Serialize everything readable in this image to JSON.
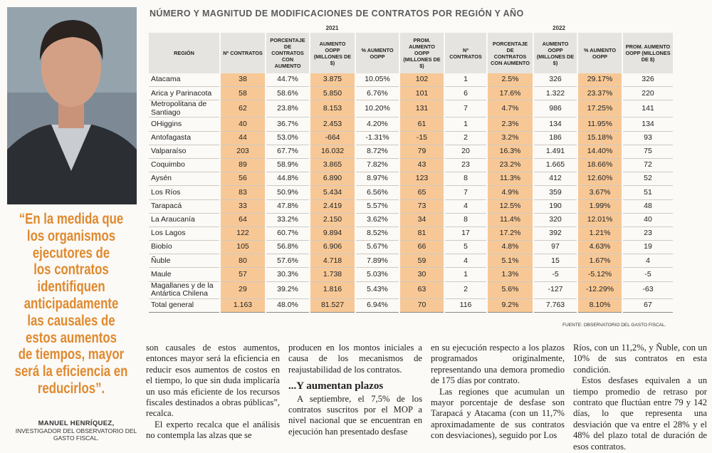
{
  "quote": {
    "lines": [
      "“En la medida que",
      "los organismos",
      "ejecutores de",
      "los contratos",
      "identifiquen",
      "anticipadamente",
      "las causales de",
      "estos aumentos",
      "de tiempos, mayor",
      "será la eficiencia en",
      "reducirlos”."
    ],
    "author": "MANUEL HENRÍQUEZ,",
    "role": "INVESTIGADOR DEL OBSERVATORIO DEL GASTO FISCAL."
  },
  "table": {
    "title": "NÚMERO Y MAGNITUD DE MODIFICACIONES DE CONTRATOS POR REGIÓN Y AÑO",
    "years": [
      "2021",
      "2022"
    ],
    "headers": [
      "REGIÓN",
      "Nº CONTRATOS",
      "PORCENTAJE DE CONTRATOS CON AUMENTO",
      "AUMENTO OOPP (MILLONES DE $)",
      "% AUMENTO OOPP",
      "PROM. AUMENTO OOPP (MILLONES DE $)",
      "Nº CONTRATOS",
      "PORCENTAJE DE CONTRATOS CON AUMENTO",
      "AUMENTO OOPP (MILLONES DE $)",
      "% AUMENTO OOPP",
      "PROM. AUMENTO OOPP (MILLONES DE $)"
    ],
    "rows": [
      [
        "Atacama",
        "38",
        "44.7%",
        "3.875",
        "10.05%",
        "102",
        "1",
        "2.5%",
        "326",
        "29.17%",
        "326"
      ],
      [
        "Arica y Parinacota",
        "58",
        "58.6%",
        "5.850",
        "6.76%",
        "101",
        "6",
        "17.6%",
        "1.322",
        "23.37%",
        "220"
      ],
      [
        "Metropolitana de Santiago",
        "62",
        "23.8%",
        "8.153",
        "10.20%",
        "131",
        "7",
        "4.7%",
        "986",
        "17.25%",
        "141"
      ],
      [
        "OHiggins",
        "40",
        "36.7%",
        "2.453",
        "4.20%",
        "61",
        "1",
        "2.3%",
        "134",
        "11.95%",
        "134"
      ],
      [
        "Antofagasta",
        "44",
        "53.0%",
        "-664",
        "-1.31%",
        "-15",
        "2",
        "3.2%",
        "186",
        "15.18%",
        "93"
      ],
      [
        "Valparaíso",
        "203",
        "67.7%",
        "16.032",
        "8.72%",
        "79",
        "20",
        "16.3%",
        "1.491",
        "14.40%",
        "75"
      ],
      [
        "Coquimbo",
        "89",
        "58.9%",
        "3.865",
        "7.82%",
        "43",
        "23",
        "23.2%",
        "1.665",
        "18.66%",
        "72"
      ],
      [
        "Aysén",
        "56",
        "44.8%",
        "6.890",
        "8.97%",
        "123",
        "8",
        "11.3%",
        "412",
        "12.60%",
        "52"
      ],
      [
        "Los Ríos",
        "83",
        "50.9%",
        "5.434",
        "6.56%",
        "65",
        "7",
        "4.9%",
        "359",
        "3.67%",
        "51"
      ],
      [
        "Tarapacá",
        "33",
        "47.8%",
        "2.419",
        "5.57%",
        "73",
        "4",
        "12.5%",
        "190",
        "1.99%",
        "48"
      ],
      [
        "La Araucanía",
        "64",
        "33.2%",
        "2.150",
        "3.62%",
        "34",
        "8",
        "11.4%",
        "320",
        "12.01%",
        "40"
      ],
      [
        "Los Lagos",
        "122",
        "60.7%",
        "9.894",
        "8.52%",
        "81",
        "17",
        "17.2%",
        "392",
        "1.21%",
        "23"
      ],
      [
        "Biobío",
        "105",
        "56.8%",
        "6.906",
        "5.67%",
        "66",
        "5",
        "4.8%",
        "97",
        "4.63%",
        "19"
      ],
      [
        "Ñuble",
        "80",
        "57.6%",
        "4.718",
        "7.89%",
        "59",
        "4",
        "5.1%",
        "15",
        "1.67%",
        "4"
      ],
      [
        "Maule",
        "57",
        "30.3%",
        "1.738",
        "5.03%",
        "30",
        "1",
        "1.3%",
        "-5",
        "-5.12%",
        "-5"
      ],
      [
        "Magallanes y de la Antártica Chilena",
        "29",
        "39.2%",
        "1.816",
        "5.43%",
        "63",
        "2",
        "5.6%",
        "-127",
        "-12.29%",
        "-63"
      ]
    ],
    "total": [
      "Total general",
      "1.163",
      "48.0%",
      "81.527",
      "6.94%",
      "70",
      "116",
      "9.2%",
      "7.763",
      "8.10%",
      "67"
    ],
    "source": "FUENTE: OBSERVATORIO DEL GASTO FISCAL."
  },
  "article": {
    "columns": [
      [
        "son causales de estos aumentos, entonces mayor será la eficiencia en reducir esos aumentos de costos en el tiempo, lo que sin duda implicaría un uso más eficiente de los recursos fiscales destinados a obras públicas”, recalca.",
        "El experto recalca que el análisis no contempla las alzas que se"
      ],
      [
        "producen en los montos iniciales a causa de los mecanismos de reajustabilidad de los contratos.",
        "A septiembre, el 7,5% de los contratos suscritos por el MOP a nivel nacional que se encuentran en ejecución han presentado desfase"
      ],
      [
        "en su ejecución respecto a los plazos programados originalmente, representando una demora promedio de 175 días por contrato.",
        "Las regiones que acumulan un mayor porcentaje de desfase son Tarapacá y Atacama (con un 11,7% aproximadamente de sus contratos con desviaciones), seguido por Los"
      ],
      [
        "Ríos, con un 11,2%, y Ñuble, con un 10% de sus contratos en esta condición.",
        "Estos desfases equivalen a un tiempo promedio de retraso por contrato que fluctúan entre 79 y 142 días, lo que representa una desviación que va entre el 28% y el 48% del plazo total de duración de esos contratos."
      ]
    ],
    "subheading": "...Y aumentan plazos"
  }
}
